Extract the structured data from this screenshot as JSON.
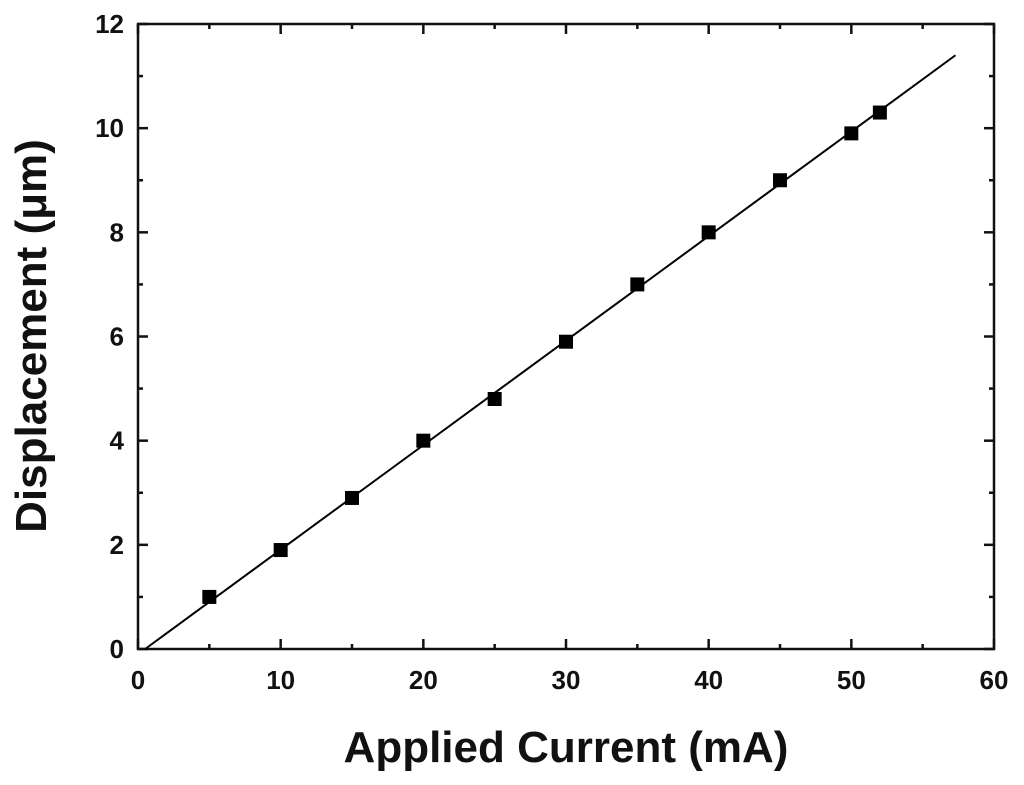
{
  "chart_data": {
    "type": "scatter",
    "xlabel": "Applied Current (mA)",
    "ylabel": "Displacement (μm)",
    "xlim": [
      0,
      60
    ],
    "ylim": [
      0,
      12
    ],
    "xticks": [
      0,
      10,
      20,
      30,
      40,
      50,
      60
    ],
    "yticks": [
      0,
      2,
      4,
      6,
      8,
      10,
      12
    ],
    "grid": false,
    "series": [
      {
        "marker": "square",
        "color": "#000000",
        "points": [
          {
            "x": 5,
            "y": 1.0
          },
          {
            "x": 10,
            "y": 1.9
          },
          {
            "x": 15,
            "y": 2.9
          },
          {
            "x": 20,
            "y": 4.0
          },
          {
            "x": 25,
            "y": 4.8
          },
          {
            "x": 30,
            "y": 5.9
          },
          {
            "x": 35,
            "y": 7.0
          },
          {
            "x": 40,
            "y": 8.0
          },
          {
            "x": 45,
            "y": 9.0
          },
          {
            "x": 50,
            "y": 9.9
          },
          {
            "x": 52,
            "y": 10.3
          }
        ]
      }
    ],
    "fit_line": {
      "color": "#000000",
      "points": [
        {
          "x": 0.5,
          "y": 0.0
        },
        {
          "x": 57.3,
          "y": 11.4
        }
      ]
    }
  }
}
